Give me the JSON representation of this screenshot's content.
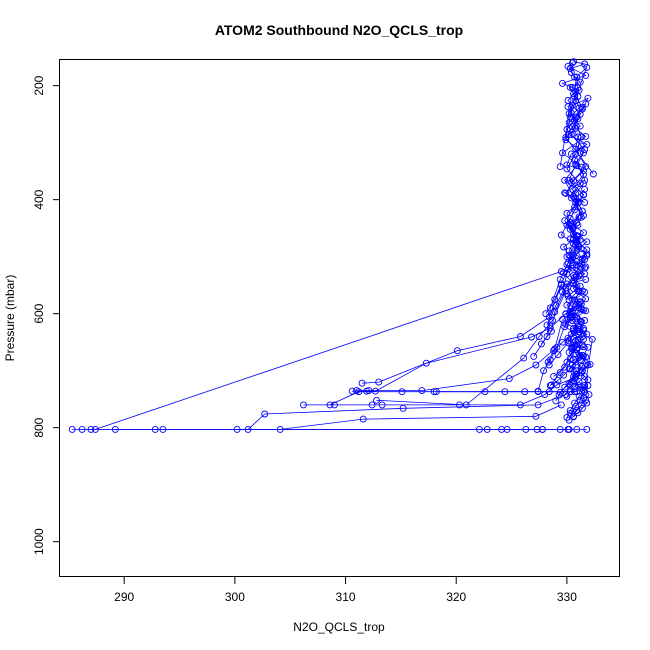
{
  "chart_data": {
    "type": "line",
    "title": "ATOM2 Southbound N2O_QCLS_trop",
    "xlabel": "N2O_QCLS_trop",
    "ylabel": "Pressure (mbar)",
    "xlim": [
      284.2,
      334.8
    ],
    "ylim": [
      1062,
      155
    ],
    "y_reversed": true,
    "grid": false,
    "legend": "none",
    "x_ticks": [
      290,
      300,
      310,
      320,
      330
    ],
    "y_ticks": [
      200,
      400,
      600,
      800,
      1000
    ],
    "series_color": "#0000ff",
    "series": [
      {
        "x": [
          285.3,
          330.1,
          329.4
        ],
        "y": [
          803,
          803,
          803
        ]
      },
      {
        "x": [
          286.2,
          287.0,
          327.8,
          330.2
        ],
        "y": [
          803,
          803,
          803,
          803
        ]
      },
      {
        "x": [
          287.4,
          329.5,
          331.2,
          330.2,
          329.7,
          330.6,
          330.5,
          331.3,
          330.8,
          329.9,
          330.6,
          331.5,
          330.0,
          330.4,
          331.8,
          330.2,
          331.2,
          330.3,
          331.1,
          330.7,
          330.3,
          331.2,
          330.4,
          330.5,
          330.1,
          331.7,
          329.6,
          331.1,
          330.8,
          330.4,
          330.8,
          331.7,
          329.6,
          331.3,
          331.6,
          329.8,
          331.6
        ],
        "y": [
          803,
          526,
          517,
          498,
          483,
          470,
          451,
          431,
          405,
          389,
          367,
          349,
          339,
          320,
          303,
          286,
          271,
          255,
          239,
          219,
          203,
          194,
          177,
          160,
          166,
          182,
          196,
          208,
          226,
          248,
          275,
          289,
          318,
          343,
          366,
          388,
          405
        ]
      },
      {
        "x": [
          289.2,
          292.8,
          293.5,
          330.9,
          331.8
        ],
        "y": [
          803,
          803,
          803,
          803,
          803
        ]
      },
      {
        "x": [
          301.2,
          302.7,
          315.2,
          327.4,
          329.9,
          330.3,
          330.8
        ],
        "y": [
          803,
          776,
          766,
          760,
          742,
          725,
          700
        ]
      },
      {
        "x": [
          300.2,
          304.1,
          311.6,
          327.2,
          329.5
        ],
        "y": [
          803,
          803,
          785,
          780,
          760
        ]
      },
      {
        "x": [
          306.2,
          309.0,
          312.4,
          313.3,
          320.3,
          325.8,
          328.0,
          329.1,
          330.8
        ],
        "y": [
          760,
          760,
          760,
          760,
          760,
          760,
          742,
          725,
          712
        ]
      },
      {
        "x": [
          308.6,
          311.2,
          315.1,
          318.0,
          324.4,
          327.4,
          330.7,
          331.6
        ],
        "y": [
          760,
          737,
          737,
          737,
          737,
          737,
          737,
          726
        ]
      },
      {
        "x": [
          310.6,
          311.9,
          312.7,
          317.3,
          326.8,
          328.5,
          329.9,
          331.2
        ],
        "y": [
          736,
          736,
          736,
          687,
          641,
          625,
          600,
          580
        ]
      },
      {
        "x": [
          311.5,
          313.0,
          320.1,
          325.8,
          328.4,
          329.5,
          331.7
        ],
        "y": [
          722,
          720,
          665,
          640,
          606,
          550,
          540
        ]
      },
      {
        "x": [
          311.0,
          312.1,
          316.9,
          324.8,
          327.2,
          328.9,
          329.6
        ],
        "y": [
          735,
          735,
          735,
          714,
          690,
          662,
          610
        ]
      },
      {
        "x": [
          312.8,
          320.9,
          326.1,
          327.5,
          328.7,
          329.9
        ],
        "y": [
          752,
          760,
          678,
          640,
          612,
          560
        ]
      },
      {
        "x": [
          318.2,
          322.6,
          326.2,
          328.4,
          330.3,
          330.9,
          331.9
        ],
        "y": [
          737,
          737,
          737,
          737,
          737,
          737,
          726
        ]
      },
      {
        "x": [
          322.1,
          322.8,
          324.1,
          324.6,
          326.3,
          327.3,
          327.8
        ],
        "y": [
          803,
          803,
          803,
          803,
          803,
          803,
          803
        ]
      },
      {
        "x": [
          327.0,
          328.2,
          328.5,
          329.4,
          330.1,
          331.0,
          330.4,
          331.4,
          330.6,
          329.8,
          330.9,
          331.5,
          329.9,
          330.5,
          331.2,
          330.1,
          331.0,
          330.7,
          330.3,
          331.6,
          330.6
        ],
        "y": [
          675,
          640,
          590,
          540,
          511,
          478,
          446,
          420,
          395,
          366,
          340,
          318,
          295,
          272,
          250,
          226,
          204,
          185,
          170,
          162,
          158
        ]
      },
      {
        "x": [
          327.7,
          328.6,
          328.9,
          329.9,
          331.6,
          330.2,
          330.9,
          329.8,
          330.7,
          331.5,
          330.4,
          331.7,
          330.8,
          331.0,
          330.2,
          331.4,
          331.9,
          330.5,
          329.9,
          332.4
        ],
        "y": [
          653,
          631,
          597,
          555,
          505,
          490,
          465,
          437,
          413,
          391,
          370,
          342,
          311,
          290,
          265,
          241,
          222,
          235,
          291,
          355
        ]
      },
      {
        "x": [
          328.2,
          329.0,
          329.6,
          330.0,
          330.5,
          331.1,
          329.5,
          330.3,
          331.1,
          330.5,
          331.5,
          330.7,
          331.3,
          330.0,
          330.9,
          331.4,
          330.6,
          330.9,
          331.8,
          330.2,
          329.4
        ],
        "y": [
          620,
          586,
          562,
          530,
          502,
          482,
          462,
          433,
          404,
          382,
          356,
          331,
          306,
          277,
          255,
          238,
          214,
          185,
          168,
          249,
          342
        ]
      },
      {
        "x": [
          327.4,
          327.9,
          328.5,
          329.1,
          330.0,
          330.6,
          331.1,
          329.7,
          330.9,
          331.8,
          330.3,
          330.9,
          331.5,
          330.4,
          331.2,
          330.0,
          330.8,
          331.3,
          330.7,
          330.1,
          331.0,
          330.5
        ],
        "y": [
          736,
          700,
          681,
          659,
          611,
          583,
          561,
          528,
          509,
          498,
          469,
          441,
          428,
          397,
          372,
          346,
          320,
          290,
          262,
          237,
          219,
          203
        ]
      },
      {
        "x": [
          328.5,
          329.4,
          330.0,
          330.7,
          331.4,
          329.8,
          330.5,
          331.5,
          330.2,
          331.0,
          330.6,
          331.3,
          331.8,
          330.9,
          330.3,
          331.1
        ],
        "y": [
          726,
          703,
          685,
          657,
          640,
          623,
          605,
          594,
          576,
          560,
          533,
          513,
          488,
          473,
          452,
          430
        ]
      },
      {
        "x": [
          328.4,
          329.2,
          330.1,
          330.7,
          331.6,
          330.5,
          330.0,
          331.4,
          330.6,
          331.7,
          330.0,
          330.8,
          331.5,
          330.3,
          330.0,
          331.0,
          330.8,
          331.5
        ],
        "y": [
          690,
          672,
          651,
          633,
          612,
          597,
          585,
          560,
          542,
          518,
          500,
          479,
          458,
          440,
          424,
          406,
          389,
          372
        ]
      },
      {
        "x": [
          328.8,
          329.8,
          330.3,
          330.9,
          331.5,
          331.1,
          330.5,
          329.9,
          331.1,
          331.7,
          330.6,
          331.2,
          330.0,
          331.3,
          330.9,
          330.2,
          331.4,
          330.8,
          331.6
        ],
        "y": [
          710,
          694,
          679,
          660,
          645,
          628,
          612,
          601,
          590,
          574,
          556,
          530,
          514,
          486,
          463,
          445,
          420,
          398,
          382
        ]
      },
      {
        "x": [
          329.3,
          329.8,
          330.6,
          330.2,
          331.1,
          330.4,
          330.8,
          331.5,
          329.9,
          330.3,
          331.3,
          330.1,
          331.2,
          330.7,
          331.6,
          330.4,
          331.8,
          330.6,
          331.0
        ],
        "y": [
          743,
          729,
          711,
          697,
          677,
          661,
          647,
          629,
          618,
          606,
          583,
          569,
          552,
          536,
          520,
          507,
          495,
          478,
          464
        ]
      },
      {
        "x": [
          329.0,
          329.4,
          330.2,
          330.8,
          331.4,
          331.7,
          330.6,
          330.1,
          331.5,
          330.9,
          330.3,
          331.2,
          330.0,
          330.6,
          331.6,
          330.5
        ],
        "y": [
          753,
          738,
          723,
          707,
          692,
          676,
          659,
          643,
          626,
          609,
          596,
          579,
          565,
          547,
          530,
          515
        ]
      },
      {
        "x": [
          330.0,
          330.3,
          330.7,
          331.1,
          331.5,
          330.4,
          330.9,
          331.3,
          330.6,
          330.2,
          331.4
        ],
        "y": [
          782,
          770,
          757,
          745,
          734,
          720,
          706,
          693,
          681,
          668,
          655
        ]
      },
      {
        "x": [
          330.3,
          330.8,
          331.2,
          331.6,
          331.0,
          330.7,
          331.4,
          331.9,
          331.2,
          330.9
        ],
        "y": [
          775,
          763,
          752,
          737,
          725,
          714,
          700,
          690,
          674,
          663
        ]
      },
      {
        "x": [
          330.2,
          330.6,
          330.9,
          331.3,
          331.7,
          332.0,
          331.6,
          331.9,
          331.3,
          332.1,
          331.5,
          331.9,
          331.0
        ],
        "y": [
          787,
          780,
          770,
          760,
          752,
          742,
          729,
          716,
          704,
          689,
          674,
          659,
          647
        ]
      },
      {
        "x": [
          330.6,
          331.0,
          331.4,
          331.8,
          331.5,
          332.3,
          331.1
        ],
        "y": [
          781,
          774,
          766,
          757,
          748,
          645,
          632
        ]
      },
      {
        "x": [
          328.6,
          329.2,
          329.7,
          330.3,
          330.8,
          331.4,
          330.5,
          331.0,
          330.6,
          331.2,
          330.3,
          331.1
        ],
        "y": [
          725,
          717,
          708,
          697,
          685,
          673,
          660,
          645,
          630,
          614,
          598,
          584
        ]
      },
      {
        "x": [
          330.0,
          330.3,
          330.7,
          331.1,
          331.6,
          330.9,
          330.5,
          331.2,
          330.8,
          331.5,
          330.2,
          331.8,
          330.6,
          331.3,
          330.9,
          331.7,
          330.4
        ],
        "y": [
          745,
          737,
          728,
          719,
          710,
          700,
          690,
          681,
          670,
          658,
          648,
          636,
          626,
          615,
          606,
          595,
          588
        ]
      },
      {
        "x": [
          328.3,
          328.8,
          329.6,
          330.4,
          331.0,
          330.3,
          331.3,
          330.7,
          331.6,
          330.0,
          331.1,
          330.5,
          331.4,
          330.9,
          331.8,
          330.6,
          331.0
        ],
        "y": [
          685,
          665,
          650,
          636,
          622,
          608,
          592,
          576,
          562,
          548,
          534,
          520,
          505,
          489,
          474,
          460,
          445
        ]
      },
      {
        "x": [
          328.1,
          328.9,
          329.5,
          330.1,
          330.6,
          331.2,
          330.0,
          330.7,
          331.5,
          330.2,
          330.8,
          331.6,
          330.4,
          331.0,
          331.7
        ],
        "y": [
          600,
          575,
          548,
          522,
          497,
          470,
          445,
          418,
          392,
          366,
          338,
          312,
          286,
          258,
          232
        ]
      }
    ]
  }
}
